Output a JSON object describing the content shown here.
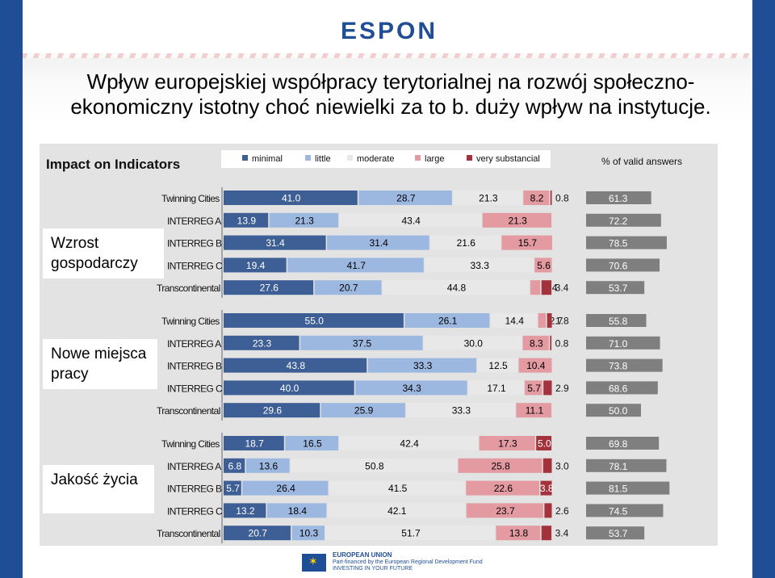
{
  "header": {
    "logo": "ESPON",
    "title": "Wpływ europejskiej współpracy terytorialnej na rozwój społeczno-ekonomiczny istotny choć niewielki za to b. duży wpływ na instytucje."
  },
  "footer": {
    "line1": "EUROPEAN UNION",
    "line2": "Part-financed by the European Regional Development Fund",
    "line3": "INVESTING IN YOUR FUTURE"
  },
  "colors": {
    "minimal": "#3d5f95",
    "little": "#9db8e0",
    "moderate": "#e8e8e8",
    "large": "#e39aa0",
    "very_substancial": "#a3323c",
    "valid": "#7f7f7f",
    "side": "#1f4e96"
  },
  "chart_data": {
    "type": "bar",
    "stacked": true,
    "orientation": "horizontal",
    "title": "Impact on Indicators",
    "legend": [
      "minimal",
      "little",
      "moderate",
      "large",
      "very substancial"
    ],
    "legend_position": "top",
    "valid_label": "% of valid answers",
    "groups": [
      {
        "label": "Wzrost gospodarczy",
        "rows": [
          {
            "category": "Twinning Cities",
            "values": [
              41.0,
              28.7,
              21.3,
              8.2,
              0.8
            ],
            "labels": [
              "41.0",
              "28.7",
              "21.3",
              "8.2",
              "0.8"
            ],
            "valid": 61.3
          },
          {
            "category": "INTERREG A",
            "values": [
              13.9,
              21.3,
              43.4,
              21.3,
              0
            ],
            "labels": [
              "13.9",
              "21.3",
              "43.4",
              "21.3",
              ""
            ],
            "valid": 72.2
          },
          {
            "category": "INTERREG B",
            "values": [
              31.4,
              31.4,
              21.6,
              15.7,
              0
            ],
            "labels": [
              "31.4",
              "31.4",
              "21.6",
              "15.7",
              ""
            ],
            "valid": 78.5
          },
          {
            "category": "INTERREG C",
            "values": [
              19.4,
              41.7,
              33.3,
              5.6,
              0
            ],
            "labels": [
              "19.4",
              "41.7",
              "33.3",
              "5.6",
              ""
            ],
            "valid": 70.6
          },
          {
            "category": "Transcontinental",
            "values": [
              27.6,
              20.7,
              44.8,
              3.4,
              3.4
            ],
            "labels": [
              "27.6",
              "20.7",
              "44.8",
              "3.4",
              "3.4"
            ],
            "valid": 53.7
          }
        ]
      },
      {
        "label": "Nowe miejsca pracy",
        "rows": [
          {
            "category": "Twinning Cities",
            "values": [
              55.0,
              26.1,
              14.4,
              2.7,
              1.8
            ],
            "labels": [
              "55.0",
              "26.1",
              "14.4",
              "2.7",
              "1.8"
            ],
            "valid": 55.8
          },
          {
            "category": "INTERREG A",
            "values": [
              23.3,
              37.5,
              30.0,
              8.3,
              0.8
            ],
            "labels": [
              "23.3",
              "37.5",
              "30.0",
              "8.3",
              "0.8"
            ],
            "valid": 71.0
          },
          {
            "category": "INTERREG B",
            "values": [
              43.8,
              33.3,
              12.5,
              10.4,
              0
            ],
            "labels": [
              "43.8",
              "33.3",
              "12.5",
              "10.4",
              ""
            ],
            "valid": 73.8
          },
          {
            "category": "INTERREG C",
            "values": [
              40.0,
              34.3,
              17.1,
              5.7,
              2.9
            ],
            "labels": [
              "40.0",
              "34.3",
              "17.1",
              "5.7",
              "2.9"
            ],
            "valid": 68.6
          },
          {
            "category": "Transcontinental",
            "values": [
              29.6,
              25.9,
              33.3,
              11.1,
              0
            ],
            "labels": [
              "29.6",
              "25.9",
              "33.3",
              "11.1",
              ""
            ],
            "valid": 50.0
          }
        ]
      },
      {
        "label": "Jakość życia",
        "rows": [
          {
            "category": "Twinning Cities",
            "values": [
              18.7,
              16.5,
              42.4,
              17.3,
              5.0
            ],
            "labels": [
              "18.7",
              "16.5",
              "42.4",
              "17.3",
              "5.0"
            ],
            "valid": 69.8
          },
          {
            "category": "INTERREG A",
            "values": [
              6.8,
              13.6,
              50.8,
              25.8,
              3.0
            ],
            "labels": [
              "6.8",
              "13.6",
              "50.8",
              "25.8",
              "3.0"
            ],
            "valid": 78.1
          },
          {
            "category": "INTERREG B",
            "values": [
              5.7,
              26.4,
              41.5,
              22.6,
              3.8
            ],
            "labels": [
              "5.7",
              "26.4",
              "41.5",
              "22.6",
              "3.8"
            ],
            "valid": 81.5
          },
          {
            "category": "INTERREG C",
            "values": [
              13.2,
              18.4,
              42.1,
              23.7,
              2.6
            ],
            "labels": [
              "13.2",
              "18.4",
              "42.1",
              "23.7",
              "2.6"
            ],
            "valid": 74.5
          },
          {
            "category": "Transcontinental",
            "values": [
              20.7,
              10.3,
              51.7,
              13.8,
              3.4
            ],
            "labels": [
              "20.7",
              "10.3",
              "51.7",
              "13.8",
              "3.4"
            ],
            "valid": 53.7
          }
        ]
      }
    ]
  }
}
